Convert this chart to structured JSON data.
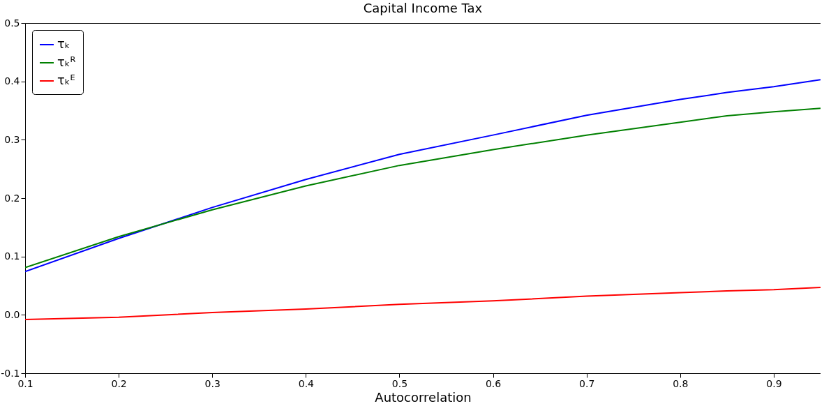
{
  "chart_data": {
    "type": "line",
    "title": "Capital Income Tax",
    "xlabel": "Autocorrelation",
    "x": [
      0.1,
      0.2,
      0.3,
      0.4,
      0.5,
      0.6,
      0.7,
      0.8,
      0.85,
      0.9,
      0.95
    ],
    "series": [
      {
        "name": "τₖ",
        "color": "#0000ff",
        "values": [
          0.074,
          0.131,
          0.184,
          0.232,
          0.275,
          0.308,
          0.342,
          0.369,
          0.381,
          0.391,
          0.403
        ]
      },
      {
        "name": "τₖᴿ",
        "color": "#008000",
        "values": [
          0.081,
          0.134,
          0.18,
          0.221,
          0.256,
          0.283,
          0.308,
          0.33,
          0.341,
          0.348,
          0.354
        ]
      },
      {
        "name": "τₖᴱ",
        "color": "#ff0000",
        "values": [
          -0.008,
          -0.004,
          0.004,
          0.01,
          0.018,
          0.024,
          0.032,
          0.038,
          0.041,
          0.043,
          0.047
        ]
      }
    ],
    "xlim": [
      0.1,
      0.95
    ],
    "xticks": [
      0.1,
      0.2,
      0.3,
      0.4,
      0.5,
      0.6,
      0.7,
      0.8,
      0.9
    ],
    "ylim": [
      -0.1,
      0.5
    ],
    "yticks": [
      -0.1,
      {
        "value": 0,
        "label": "0.0"
      },
      0.1,
      0.2,
      0.3,
      0.4,
      0.5
    ],
    "grid": false,
    "legend": "top left",
    "marker": "none",
    "line_style": "solid"
  }
}
